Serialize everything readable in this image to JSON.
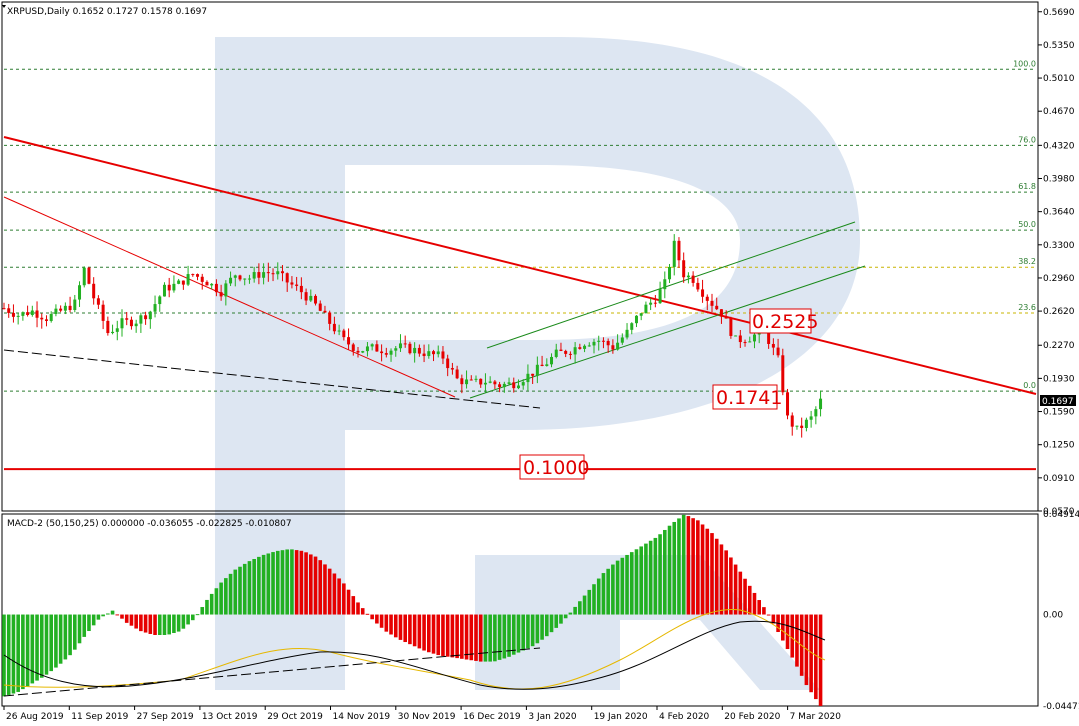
{
  "header": {
    "symbol_line": "XRPUSD,Daily  0.1652 0.1727 0.1578 0.1697",
    "indicator_line": "MACD-2 (50,150,25) 0.000000 -0.036055 -0.022825 -0.010807"
  },
  "price_axis": {
    "ticks": [
      "0.5690",
      "0.5350",
      "0.5010",
      "0.4670",
      "0.4320",
      "0.3980",
      "0.3640",
      "0.3300",
      "0.2960",
      "0.2620",
      "0.2270",
      "0.1930",
      "0.1590",
      "0.1250",
      "0.0910",
      "0.0570"
    ],
    "current_price": "0.1697"
  },
  "macd_axis": {
    "ticks": [
      "0.049141",
      "0.00",
      "-0.04471"
    ]
  },
  "date_axis": {
    "labels": [
      "26 Aug 2019",
      "11 Sep 2019",
      "27 Sep 2019",
      "13 Oct 2019",
      "29 Oct 2019",
      "14 Nov 2019",
      "30 Nov 2019",
      "16 Dec 2019",
      "3 Jan 2020",
      "19 Jan 2020",
      "4 Feb 2020",
      "20 Feb 2020",
      "7 Mar 2020"
    ]
  },
  "fib_levels": [
    {
      "label": "100.0",
      "price": 0.51
    },
    {
      "label": "76.0",
      "price": 0.432
    },
    {
      "label": "61.8",
      "price": 0.384
    },
    {
      "label": "50.0",
      "price": 0.345
    },
    {
      "label": "38.2",
      "price": 0.307
    },
    {
      "label": "23.6",
      "price": 0.26
    },
    {
      "label": "0.0",
      "price": 0.18
    }
  ],
  "level_labels": {
    "upper": "0.2525",
    "middle": "0.1741",
    "lower": "0.1000"
  },
  "colors": {
    "bull": "#22b022",
    "bear": "#e60000",
    "trend_red": "#e60000",
    "channel_green": "#1a8a1a",
    "fib_green": "#2e7d32",
    "fib_yellow": "#c8b400",
    "signal_yellow": "#e6b800",
    "macd_black": "#000000",
    "watermark": "#d6e0ef"
  },
  "chart_data": [
    {
      "type": "candlestick",
      "title": "XRPUSD,Daily",
      "ylim": [
        0.057,
        0.579
      ],
      "x": [
        "26 Aug 2019",
        "11 Sep 2019",
        "27 Sep 2019",
        "13 Oct 2019",
        "29 Oct 2019",
        "14 Nov 2019",
        "30 Nov 2019",
        "16 Dec 2019",
        "3 Jan 2020",
        "19 Jan 2020",
        "4 Feb 2020",
        "20 Feb 2020",
        "7 Mar 2020"
      ],
      "close_path": [
        [
          0,
          0.265
        ],
        [
          3,
          0.258
        ],
        [
          6,
          0.262
        ],
        [
          9,
          0.255
        ],
        [
          12,
          0.262
        ],
        [
          15,
          0.27
        ],
        [
          17,
          0.305
        ],
        [
          19,
          0.276
        ],
        [
          22,
          0.24
        ],
        [
          25,
          0.25
        ],
        [
          28,
          0.252
        ],
        [
          31,
          0.262
        ],
        [
          34,
          0.285
        ],
        [
          37,
          0.29
        ],
        [
          40,
          0.3
        ],
        [
          43,
          0.292
        ],
        [
          46,
          0.282
        ],
        [
          49,
          0.3
        ],
        [
          52,
          0.296
        ],
        [
          55,
          0.302
        ],
        [
          58,
          0.3
        ],
        [
          60,
          0.292
        ],
        [
          63,
          0.282
        ],
        [
          66,
          0.268
        ],
        [
          69,
          0.25
        ],
        [
          72,
          0.232
        ],
        [
          75,
          0.222
        ],
        [
          78,
          0.224
        ],
        [
          81,
          0.222
        ],
        [
          84,
          0.225
        ],
        [
          87,
          0.222
        ],
        [
          90,
          0.218
        ],
        [
          93,
          0.215
        ],
        [
          96,
          0.192
        ],
        [
          99,
          0.188
        ],
        [
          102,
          0.19
        ],
        [
          105,
          0.186
        ],
        [
          108,
          0.188
        ],
        [
          111,
          0.196
        ],
        [
          114,
          0.205
        ],
        [
          117,
          0.218
        ],
        [
          120,
          0.222
        ],
        [
          123,
          0.23
        ],
        [
          126,
          0.232
        ],
        [
          129,
          0.225
        ],
        [
          132,
          0.24
        ],
        [
          135,
          0.262
        ],
        [
          138,
          0.275
        ],
        [
          140,
          0.29
        ],
        [
          142,
          0.33
        ],
        [
          144,
          0.3
        ],
        [
          146,
          0.295
        ],
        [
          149,
          0.275
        ],
        [
          152,
          0.26
        ],
        [
          155,
          0.232
        ],
        [
          158,
          0.235
        ],
        [
          161,
          0.242
        ],
        [
          164,
          0.212
        ],
        [
          166,
          0.152
        ],
        [
          168,
          0.14
        ],
        [
          171,
          0.152
        ],
        [
          173,
          0.1697
        ]
      ],
      "notable": {
        "high": 0.336,
        "low": 0.117,
        "last": 0.1697
      }
    },
    {
      "type": "bar",
      "title": "MACD-2 (50,150,25)",
      "ylim": [
        -0.04471,
        0.049141
      ],
      "series": [
        {
          "name": "MACD",
          "values": [
            -0.04,
            -0.038,
            -0.034,
            -0.03,
            -0.025,
            -0.019,
            -0.01,
            -0.002,
            0.002,
            -0.004,
            -0.008,
            -0.01,
            -0.01,
            -0.008,
            -0.002,
            0.008,
            0.016,
            0.022,
            0.026,
            0.029,
            0.031,
            0.032,
            0.031,
            0.028,
            0.022,
            0.015,
            0.006,
            -0.002,
            -0.008,
            -0.012,
            -0.015,
            -0.018,
            -0.02,
            -0.021,
            -0.022,
            -0.023,
            -0.023,
            -0.021,
            -0.018,
            -0.015,
            -0.01,
            -0.004,
            0.004,
            0.012,
            0.02,
            0.026,
            0.03,
            0.034,
            0.038,
            0.044,
            0.049,
            0.046,
            0.04,
            0.032,
            0.022,
            0.012,
            0.002,
            -0.01,
            -0.022,
            -0.035,
            -0.0447
          ]
        },
        {
          "name": "Signal",
          "values": []
        }
      ]
    }
  ]
}
